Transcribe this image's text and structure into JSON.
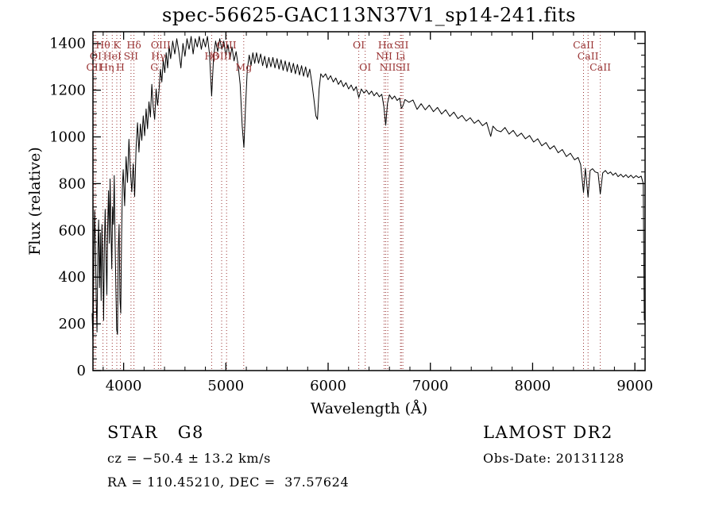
{
  "title": "spec-56625-GAC113N37V1_sp14-241.fits",
  "footer": {
    "left": {
      "line1": "STAR   G8",
      "line2": "cz = −50.4 ± 13.2 km/s",
      "line3": "RA = 110.45210, DEC =  37.57624"
    },
    "right": {
      "line1": "LAMOST DR2",
      "line2": "Obs-Date: 20131128"
    }
  },
  "chart_data": {
    "type": "line",
    "title": "spec-56625-GAC113N37V1_sp14-241.fits",
    "xlabel": "Wavelength (Å)",
    "ylabel": "Flux (relative)",
    "xlim": [
      3700,
      9100
    ],
    "ylim": [
      0,
      1450
    ],
    "xticks": [
      4000,
      5000,
      6000,
      7000,
      8000,
      9000
    ],
    "yticks": [
      0,
      200,
      400,
      600,
      800,
      1000,
      1200,
      1400
    ],
    "x_minor_step": 200,
    "y_minor_step": 50,
    "grid": false,
    "legend": "none",
    "spectrum_color": "#000000",
    "marker_color": "#993333",
    "spectral_lines": [
      {
        "wl": 3712,
        "label": "OII",
        "row": 2
      },
      {
        "wl": 3727,
        "label": "OI",
        "row": 1
      },
      {
        "wl": 3798,
        "label": "Hθ",
        "row": 0
      },
      {
        "wl": 3835,
        "label": "Hη",
        "row": 2
      },
      {
        "wl": 3889,
        "label": "HeI",
        "row": 1
      },
      {
        "wl": 3933,
        "label": "K",
        "row": 0
      },
      {
        "wl": 3968,
        "label": "H",
        "row": 2
      },
      {
        "wl": 4072,
        "label": "SII",
        "row": 1
      },
      {
        "wl": 4101,
        "label": "Hδ",
        "row": 0
      },
      {
        "wl": 4300,
        "label": "G",
        "row": 2
      },
      {
        "wl": 4340,
        "label": "Hγ",
        "row": 1
      },
      {
        "wl": 4363,
        "label": "OIII",
        "row": 0
      },
      {
        "wl": 4861,
        "label": "Hβ",
        "row": 1
      },
      {
        "wl": 4959,
        "label": "OIII",
        "row": 1
      },
      {
        "wl": 5007,
        "label": "OIII",
        "row": 0
      },
      {
        "wl": 5175,
        "label": "Mg",
        "row": 2
      },
      {
        "wl": 6300,
        "label": "OI",
        "row": 0
      },
      {
        "wl": 6363,
        "label": "OI",
        "row": 2
      },
      {
        "wl": 6548,
        "label": "NII",
        "row": 1
      },
      {
        "wl": 6563,
        "label": "Hα",
        "row": 0
      },
      {
        "wl": 6583,
        "label": "NII",
        "row": 2
      },
      {
        "wl": 6708,
        "label": "Li",
        "row": 1
      },
      {
        "wl": 6716,
        "label": "SII",
        "row": 0
      },
      {
        "wl": 6731,
        "label": "SII",
        "row": 2
      },
      {
        "wl": 8498,
        "label": "CaII",
        "row": 0
      },
      {
        "wl": 8542,
        "label": "CaII",
        "row": 1
      },
      {
        "wl": 8662,
        "label": "CaII",
        "row": 2
      }
    ],
    "points": [
      [
        3692,
        245
      ],
      [
        3700,
        125
      ],
      [
        3708,
        430
      ],
      [
        3716,
        685
      ],
      [
        3724,
        545
      ],
      [
        3732,
        300
      ],
      [
        3740,
        165
      ],
      [
        3748,
        520
      ],
      [
        3756,
        645
      ],
      [
        3764,
        355
      ],
      [
        3772,
        590
      ],
      [
        3780,
        300
      ],
      [
        3788,
        625
      ],
      [
        3796,
        465
      ],
      [
        3804,
        215
      ],
      [
        3812,
        545
      ],
      [
        3820,
        690
      ],
      [
        3828,
        480
      ],
      [
        3836,
        325
      ],
      [
        3844,
        610
      ],
      [
        3852,
        770
      ],
      [
        3860,
        545
      ],
      [
        3868,
        820
      ],
      [
        3876,
        600
      ],
      [
        3884,
        435
      ],
      [
        3892,
        700
      ],
      [
        3900,
        625
      ],
      [
        3908,
        835
      ],
      [
        3916,
        565
      ],
      [
        3924,
        365
      ],
      [
        3932,
        175
      ],
      [
        3940,
        155
      ],
      [
        3948,
        520
      ],
      [
        3956,
        625
      ],
      [
        3964,
        305
      ],
      [
        3972,
        245
      ],
      [
        3980,
        565
      ],
      [
        3988,
        790
      ],
      [
        3996,
        860
      ],
      [
        4010,
        705
      ],
      [
        4024,
        915
      ],
      [
        4038,
        805
      ],
      [
        4052,
        990
      ],
      [
        4066,
        855
      ],
      [
        4080,
        765
      ],
      [
        4094,
        885
      ],
      [
        4108,
        745
      ],
      [
        4122,
        955
      ],
      [
        4136,
        1060
      ],
      [
        4150,
        935
      ],
      [
        4164,
        1055
      ],
      [
        4178,
        985
      ],
      [
        4192,
        1090
      ],
      [
        4206,
        1005
      ],
      [
        4220,
        1120
      ],
      [
        4234,
        1035
      ],
      [
        4248,
        1150
      ],
      [
        4262,
        1085
      ],
      [
        4276,
        1225
      ],
      [
        4290,
        1125
      ],
      [
        4304,
        1075
      ],
      [
        4318,
        1205
      ],
      [
        4332,
        1135
      ],
      [
        4346,
        1195
      ],
      [
        4360,
        1290
      ],
      [
        4374,
        1235
      ],
      [
        4388,
        1330
      ],
      [
        4402,
        1275
      ],
      [
        4416,
        1360
      ],
      [
        4430,
        1295
      ],
      [
        4444,
        1390
      ],
      [
        4460,
        1335
      ],
      [
        4480,
        1410
      ],
      [
        4500,
        1355
      ],
      [
        4520,
        1420
      ],
      [
        4540,
        1365
      ],
      [
        4560,
        1295
      ],
      [
        4580,
        1400
      ],
      [
        4600,
        1345
      ],
      [
        4620,
        1420
      ],
      [
        4640,
        1375
      ],
      [
        4660,
        1430
      ],
      [
        4680,
        1355
      ],
      [
        4700,
        1420
      ],
      [
        4720,
        1385
      ],
      [
        4740,
        1430
      ],
      [
        4760,
        1375
      ],
      [
        4780,
        1420
      ],
      [
        4800,
        1385
      ],
      [
        4820,
        1430
      ],
      [
        4840,
        1355
      ],
      [
        4861,
        1175
      ],
      [
        4880,
        1345
      ],
      [
        4900,
        1410
      ],
      [
        4920,
        1365
      ],
      [
        4940,
        1420
      ],
      [
        4960,
        1375
      ],
      [
        4980,
        1410
      ],
      [
        5000,
        1345
      ],
      [
        5020,
        1395
      ],
      [
        5040,
        1335
      ],
      [
        5060,
        1385
      ],
      [
        5080,
        1325
      ],
      [
        5100,
        1365
      ],
      [
        5120,
        1305
      ],
      [
        5140,
        1225
      ],
      [
        5160,
        1045
      ],
      [
        5176,
        955
      ],
      [
        5192,
        1125
      ],
      [
        5210,
        1290
      ],
      [
        5228,
        1350
      ],
      [
        5246,
        1305
      ],
      [
        5264,
        1360
      ],
      [
        5282,
        1315
      ],
      [
        5300,
        1360
      ],
      [
        5320,
        1315
      ],
      [
        5340,
        1355
      ],
      [
        5360,
        1305
      ],
      [
        5380,
        1345
      ],
      [
        5400,
        1295
      ],
      [
        5420,
        1340
      ],
      [
        5440,
        1300
      ],
      [
        5460,
        1340
      ],
      [
        5480,
        1295
      ],
      [
        5500,
        1335
      ],
      [
        5520,
        1290
      ],
      [
        5540,
        1330
      ],
      [
        5560,
        1285
      ],
      [
        5580,
        1325
      ],
      [
        5600,
        1280
      ],
      [
        5620,
        1320
      ],
      [
        5640,
        1275
      ],
      [
        5660,
        1315
      ],
      [
        5680,
        1270
      ],
      [
        5700,
        1310
      ],
      [
        5720,
        1265
      ],
      [
        5740,
        1305
      ],
      [
        5760,
        1260
      ],
      [
        5780,
        1300
      ],
      [
        5800,
        1255
      ],
      [
        5820,
        1290
      ],
      [
        5840,
        1235
      ],
      [
        5860,
        1165
      ],
      [
        5880,
        1090
      ],
      [
        5896,
        1075
      ],
      [
        5912,
        1205
      ],
      [
        5928,
        1270
      ],
      [
        5950,
        1255
      ],
      [
        5975,
        1270
      ],
      [
        6000,
        1245
      ],
      [
        6025,
        1262
      ],
      [
        6050,
        1235
      ],
      [
        6075,
        1252
      ],
      [
        6100,
        1225
      ],
      [
        6125,
        1242
      ],
      [
        6150,
        1215
      ],
      [
        6175,
        1232
      ],
      [
        6200,
        1205
      ],
      [
        6225,
        1222
      ],
      [
        6250,
        1198
      ],
      [
        6275,
        1215
      ],
      [
        6300,
        1168
      ],
      [
        6325,
        1205
      ],
      [
        6350,
        1188
      ],
      [
        6375,
        1200
      ],
      [
        6400,
        1182
      ],
      [
        6425,
        1196
      ],
      [
        6450,
        1176
      ],
      [
        6475,
        1190
      ],
      [
        6500,
        1172
      ],
      [
        6525,
        1182
      ],
      [
        6545,
        1130
      ],
      [
        6563,
        1050
      ],
      [
        6580,
        1142
      ],
      [
        6600,
        1180
      ],
      [
        6625,
        1162
      ],
      [
        6650,
        1175
      ],
      [
        6675,
        1156
      ],
      [
        6700,
        1166
      ],
      [
        6716,
        1122
      ],
      [
        6731,
        1132
      ],
      [
        6752,
        1160
      ],
      [
        6790,
        1148
      ],
      [
        6830,
        1158
      ],
      [
        6870,
        1118
      ],
      [
        6910,
        1142
      ],
      [
        6950,
        1116
      ],
      [
        6990,
        1136
      ],
      [
        7030,
        1108
      ],
      [
        7070,
        1126
      ],
      [
        7110,
        1098
      ],
      [
        7150,
        1116
      ],
      [
        7190,
        1088
      ],
      [
        7230,
        1106
      ],
      [
        7270,
        1078
      ],
      [
        7310,
        1092
      ],
      [
        7350,
        1068
      ],
      [
        7390,
        1082
      ],
      [
        7430,
        1058
      ],
      [
        7470,
        1072
      ],
      [
        7510,
        1048
      ],
      [
        7550,
        1062
      ],
      [
        7590,
        1002
      ],
      [
        7612,
        1046
      ],
      [
        7650,
        1028
      ],
      [
        7690,
        1022
      ],
      [
        7730,
        1040
      ],
      [
        7770,
        1012
      ],
      [
        7810,
        1028
      ],
      [
        7850,
        1002
      ],
      [
        7890,
        1016
      ],
      [
        7930,
        992
      ],
      [
        7970,
        1006
      ],
      [
        8010,
        978
      ],
      [
        8050,
        992
      ],
      [
        8090,
        962
      ],
      [
        8130,
        976
      ],
      [
        8170,
        948
      ],
      [
        8210,
        962
      ],
      [
        8250,
        932
      ],
      [
        8290,
        946
      ],
      [
        8330,
        916
      ],
      [
        8370,
        930
      ],
      [
        8410,
        902
      ],
      [
        8445,
        912
      ],
      [
        8470,
        882
      ],
      [
        8498,
        762
      ],
      [
        8516,
        866
      ],
      [
        8542,
        742
      ],
      [
        8562,
        856
      ],
      [
        8586,
        864
      ],
      [
        8612,
        850
      ],
      [
        8640,
        846
      ],
      [
        8662,
        756
      ],
      [
        8686,
        846
      ],
      [
        8712,
        856
      ],
      [
        8736,
        842
      ],
      [
        8762,
        850
      ],
      [
        8786,
        836
      ],
      [
        8812,
        846
      ],
      [
        8836,
        830
      ],
      [
        8862,
        840
      ],
      [
        8886,
        828
      ],
      [
        8912,
        838
      ],
      [
        8936,
        826
      ],
      [
        8962,
        836
      ],
      [
        8986,
        824
      ],
      [
        9012,
        834
      ],
      [
        9036,
        826
      ],
      [
        9062,
        832
      ],
      [
        9082,
        800
      ],
      [
        9092,
        215
      ]
    ]
  }
}
